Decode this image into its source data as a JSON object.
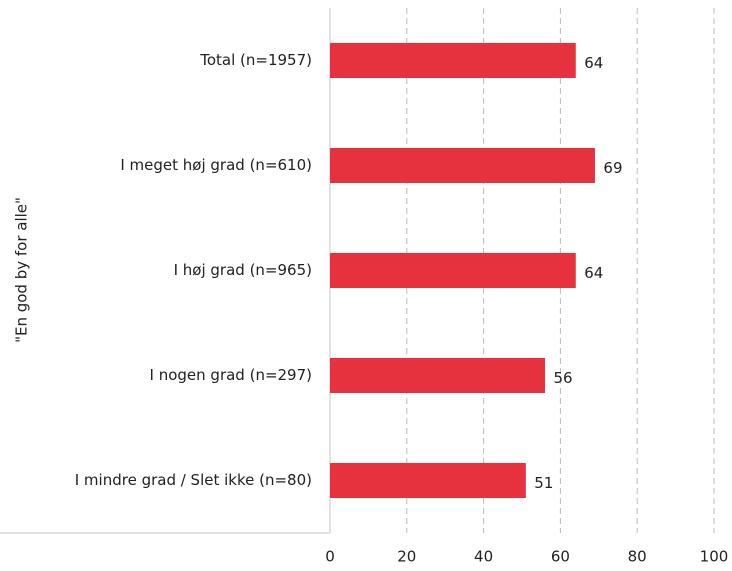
{
  "chart_data": {
    "type": "barh",
    "ylabel": "\"En god by for alle\"",
    "categories": [
      "Total (n=1957)",
      "I meget høj grad (n=610)",
      "I høj grad (n=965)",
      "I nogen grad (n=297)",
      "I mindre grad / Slet ikke (n=80)"
    ],
    "values": [
      64,
      69,
      64,
      56,
      51
    ],
    "color": "#e6323e",
    "xlim": [
      0,
      100
    ],
    "xticks": [
      0,
      20,
      40,
      60,
      80,
      100
    ],
    "grid": true
  }
}
